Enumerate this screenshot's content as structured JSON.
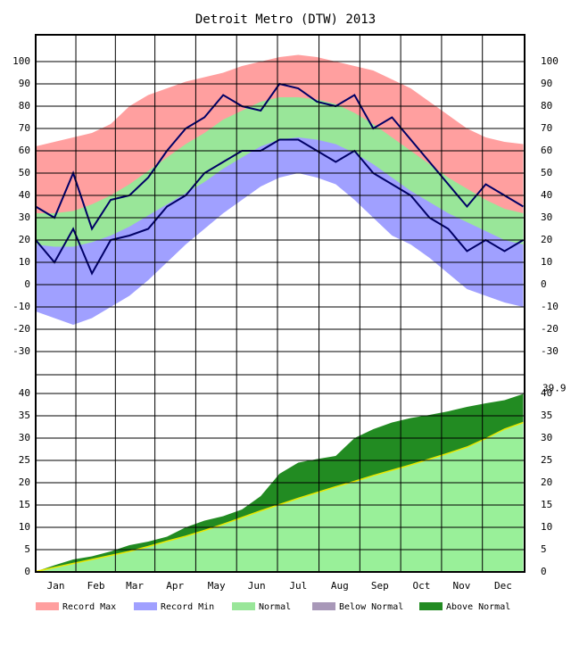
{
  "chart_data": [
    {
      "type": "band",
      "title": "Detroit Metro (DTW) 2013",
      "x": [
        1,
        15,
        29,
        43,
        57,
        71,
        85,
        99,
        113,
        127,
        141,
        155,
        169,
        183,
        197,
        211,
        225,
        239,
        253,
        267,
        281,
        295,
        309,
        323,
        337,
        351,
        365
      ],
      "xlim": [
        1,
        366
      ],
      "ylim": [
        -40,
        112
      ],
      "yticks": [
        -30,
        -20,
        -10,
        0,
        10,
        20,
        30,
        40,
        50,
        60,
        70,
        80,
        90,
        100
      ],
      "series": [
        {
          "name": "Record Max",
          "color": "#ff9f9f",
          "values": [
            62,
            64,
            66,
            68,
            72,
            80,
            85,
            88,
            91,
            93,
            95,
            98,
            100,
            102,
            103,
            102,
            100,
            98,
            96,
            92,
            88,
            82,
            76,
            70,
            66,
            64,
            63
          ]
        },
        {
          "name": "Normal",
          "color": "#99e699",
          "values": [
            32,
            32,
            33,
            36,
            40,
            45,
            51,
            57,
            63,
            68,
            74,
            78,
            82,
            84,
            84,
            83,
            81,
            77,
            72,
            66,
            60,
            54,
            48,
            43,
            38,
            34,
            32
          ]
        },
        {
          "name": "Record Min",
          "color": "#a0a0ff",
          "values": [
            18,
            17,
            17,
            19,
            22,
            26,
            31,
            36,
            41,
            46,
            52,
            57,
            62,
            65,
            66,
            65,
            63,
            59,
            54,
            48,
            42,
            37,
            32,
            28,
            24,
            20,
            18
          ],
          "min": [
            -12,
            -15,
            -18,
            -15,
            -10,
            -5,
            2,
            10,
            18,
            25,
            32,
            38,
            44,
            48,
            50,
            48,
            45,
            38,
            30,
            22,
            18,
            12,
            5,
            -2,
            -5,
            -8,
            -10
          ]
        }
      ],
      "observed": {
        "color": "#000066",
        "high": [
          35,
          30,
          50,
          25,
          38,
          40,
          48,
          60,
          70,
          75,
          85,
          80,
          78,
          90,
          88,
          82,
          80,
          85,
          70,
          75,
          65,
          55,
          45,
          35,
          45,
          40,
          35
        ],
        "low": [
          20,
          10,
          25,
          5,
          20,
          22,
          25,
          35,
          40,
          50,
          55,
          60,
          60,
          65,
          65,
          60,
          55,
          60,
          50,
          45,
          40,
          30,
          25,
          15,
          20,
          15,
          20
        ]
      }
    },
    {
      "type": "accumulation",
      "x": [
        1,
        15,
        29,
        43,
        57,
        71,
        85,
        99,
        113,
        127,
        141,
        155,
        169,
        183,
        197,
        211,
        225,
        239,
        253,
        267,
        281,
        295,
        309,
        323,
        337,
        351,
        365
      ],
      "xlim": [
        1,
        366
      ],
      "xticks": [
        {
          "value": 16,
          "label": "Jan"
        },
        {
          "value": 46,
          "label": "Feb"
        },
        {
          "value": 75,
          "label": "Mar"
        },
        {
          "value": 105,
          "label": "Apr"
        },
        {
          "value": 136,
          "label": "May"
        },
        {
          "value": 166,
          "label": "Jun"
        },
        {
          "value": 197,
          "label": "Jul"
        },
        {
          "value": 228,
          "label": "Aug"
        },
        {
          "value": 258,
          "label": "Sep"
        },
        {
          "value": 289,
          "label": "Oct"
        },
        {
          "value": 319,
          "label": "Nov"
        },
        {
          "value": 350,
          "label": "Dec"
        }
      ],
      "ylim": [
        0,
        44
      ],
      "yticks": [
        0,
        5,
        10,
        15,
        20,
        25,
        30,
        35,
        40
      ],
      "series": [
        {
          "name": "Above Normal",
          "color": "#228b22",
          "values": [
            0.1,
            1.5,
            2.8,
            3.5,
            4.6,
            6.0,
            6.8,
            7.9,
            10.0,
            11.5,
            12.5,
            14.0,
            17.0,
            22.0,
            24.5,
            25.3,
            26.0,
            30.0,
            32.0,
            33.5,
            34.5,
            35.2,
            36.0,
            37.0,
            37.8,
            38.5,
            39.9
          ]
        },
        {
          "name": "Normal",
          "color": "#99f099",
          "line_color": "#e8e800",
          "values": [
            0.1,
            1.0,
            1.9,
            2.8,
            3.7,
            4.6,
            5.7,
            6.9,
            8.0,
            9.3,
            10.7,
            12.2,
            13.7,
            15.1,
            16.5,
            17.8,
            19.1,
            20.3,
            21.6,
            22.8,
            24.0,
            25.3,
            26.6,
            28.0,
            29.9,
            32.0,
            33.5
          ]
        },
        {
          "name": "Below Normal",
          "color": "#a898b8",
          "values": [
            null,
            null,
            null,
            null,
            null,
            null,
            null,
            null,
            null,
            null,
            null,
            null,
            null,
            null,
            null,
            null,
            null,
            null,
            null,
            null,
            null,
            null,
            null,
            null,
            null,
            null,
            null
          ]
        }
      ],
      "annotation": "39.9"
    }
  ]
}
